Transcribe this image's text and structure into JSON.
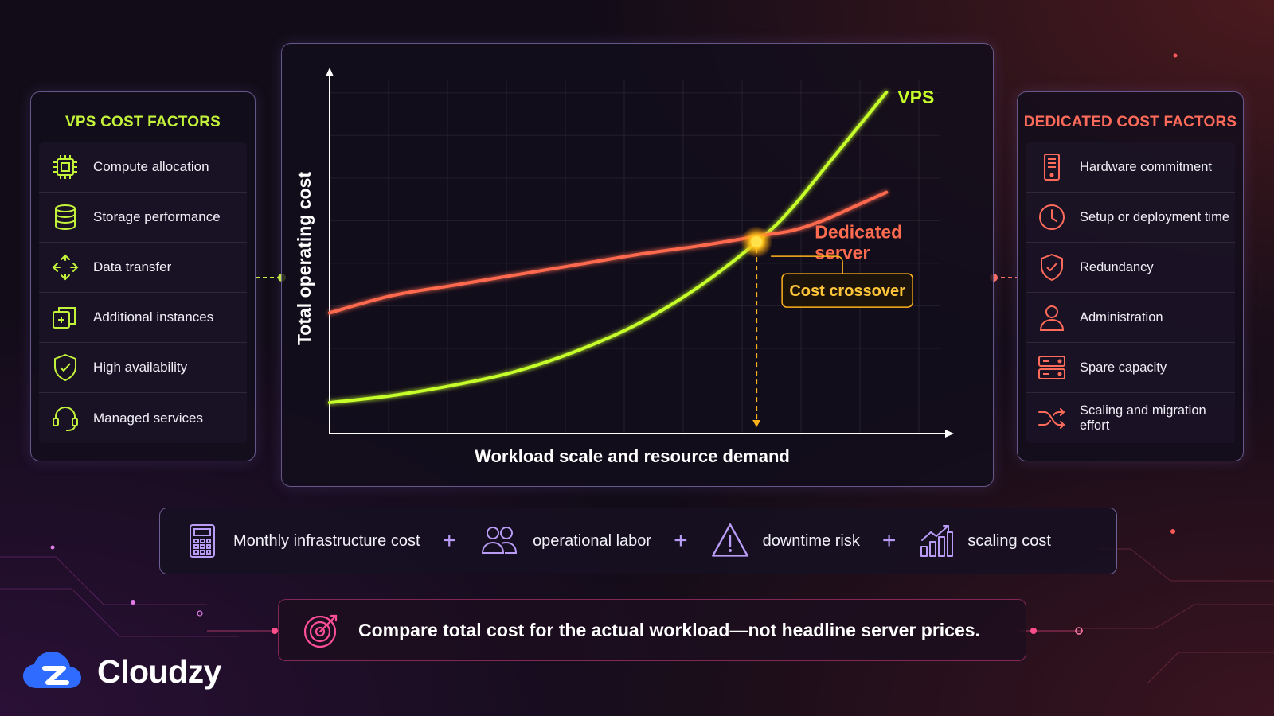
{
  "left_panel": {
    "title": "VPS COST FACTORS",
    "items": [
      {
        "label": "Compute allocation",
        "icon": "cpu-chip-icon"
      },
      {
        "label": "Storage performance",
        "icon": "database-icon"
      },
      {
        "label": "Data transfer",
        "icon": "transfer-arrows-icon"
      },
      {
        "label": "Additional instances",
        "icon": "stacked-windows-icon"
      },
      {
        "label": "High availability",
        "icon": "shield-check-icon"
      },
      {
        "label": "Managed services",
        "icon": "headset-icon"
      }
    ],
    "accent_color": "#c3f23a"
  },
  "right_panel": {
    "title": "DEDICATED COST FACTORS",
    "items": [
      {
        "label": "Hardware commitment",
        "icon": "server-tower-icon"
      },
      {
        "label": "Setup or deployment time",
        "icon": "clock-icon"
      },
      {
        "label": "Redundancy",
        "icon": "shield-check-icon"
      },
      {
        "label": "Administration",
        "icon": "user-icon"
      },
      {
        "label": "Spare capacity",
        "icon": "server-rack-icon"
      },
      {
        "label": "Scaling and migration effort",
        "icon": "shuffle-arrows-icon"
      }
    ],
    "accent_color": "#ff6b5a"
  },
  "chart_data": {
    "type": "line",
    "xlabel": "Workload scale and resource demand",
    "ylabel": "Total operating cost",
    "x": [
      0,
      0.1,
      0.2,
      0.3,
      0.4,
      0.5,
      0.6,
      0.7,
      0.75,
      0.8,
      0.85,
      0.9
    ],
    "series": [
      {
        "name": "VPS",
        "color": "#c6ff2a",
        "values": [
          0.09,
          0.11,
          0.14,
          0.18,
          0.24,
          0.32,
          0.43,
          0.57,
          0.66,
          0.77,
          0.88,
          0.99
        ]
      },
      {
        "name": "Dedicated server",
        "color": "#ff6b4f",
        "values": [
          0.35,
          0.4,
          0.43,
          0.46,
          0.49,
          0.52,
          0.545,
          0.575,
          0.59,
          0.62,
          0.66,
          0.7
        ]
      }
    ],
    "annotation": {
      "label": "Cost crossover",
      "x": 0.69
    },
    "xlim": [
      0,
      1
    ],
    "ylim": [
      0,
      1.05
    ],
    "grid": true,
    "axis_ticks": false
  },
  "formula": {
    "terms": [
      {
        "label": "Monthly infrastructure cost",
        "icon": "calculator-icon"
      },
      {
        "label": "operational labor",
        "icon": "people-icon"
      },
      {
        "label": "downtime risk",
        "icon": "warning-icon"
      },
      {
        "label": "scaling cost",
        "icon": "growth-chart-icon"
      }
    ],
    "operator": "+"
  },
  "takeaway": {
    "text": "Compare total cost for the actual workload—not headline server prices.",
    "icon": "target-icon"
  },
  "brand": {
    "name": "Cloudzy",
    "logo_color": "#2f6bff"
  }
}
